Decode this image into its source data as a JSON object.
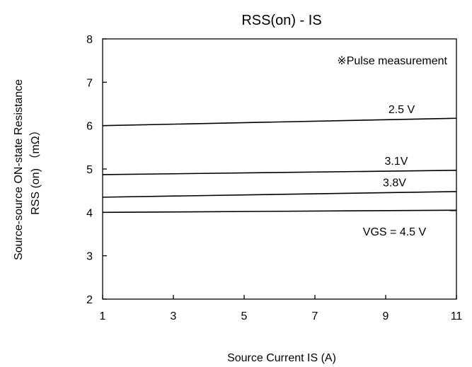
{
  "chart_data": {
    "type": "line",
    "title": "RSS(on) - IS",
    "xlabel": "Source Current IS (A)",
    "ylabel_line1": "Source-source ON-state Resistance",
    "ylabel_line2": "RSS (on) （mΩ）",
    "xlim": [
      1,
      11
    ],
    "ylim": [
      2,
      8
    ],
    "xticks": [
      1,
      3,
      5,
      7,
      9,
      11
    ],
    "yticks": [
      2,
      3,
      4,
      5,
      6,
      7,
      8
    ],
    "grid": false,
    "note": "※Pulse measurement",
    "series": [
      {
        "name": "2.5 V",
        "x": [
          1,
          11
        ],
        "y": [
          6.0,
          6.17
        ]
      },
      {
        "name": "3.1V",
        "x": [
          1,
          11
        ],
        "y": [
          4.87,
          4.97
        ]
      },
      {
        "name": "3.8V",
        "x": [
          1,
          11
        ],
        "y": [
          4.35,
          4.48
        ]
      },
      {
        "name": "VGS = 4.5 V",
        "x": [
          1,
          11
        ],
        "y": [
          4.0,
          4.05
        ]
      }
    ]
  }
}
